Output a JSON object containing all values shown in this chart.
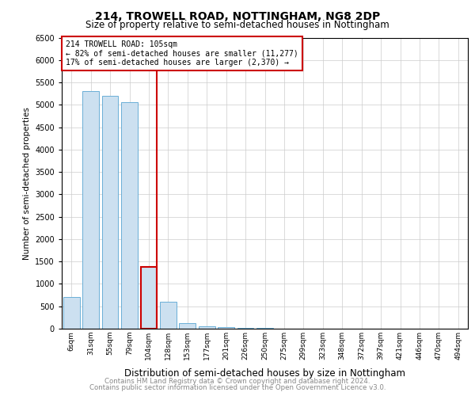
{
  "title1": "214, TROWELL ROAD, NOTTINGHAM, NG8 2DP",
  "title2": "Size of property relative to semi-detached houses in Nottingham",
  "xlabel": "Distribution of semi-detached houses by size in Nottingham",
  "ylabel": "Number of semi-detached properties",
  "annotation_line1": "214 TROWELL ROAD: 105sqm",
  "annotation_line2": "← 82% of semi-detached houses are smaller (11,277)",
  "annotation_line3": "17% of semi-detached houses are larger (2,370) →",
  "categories": [
    "6sqm",
    "31sqm",
    "55sqm",
    "79sqm",
    "104sqm",
    "128sqm",
    "153sqm",
    "177sqm",
    "201sqm",
    "226sqm",
    "250sqm",
    "275sqm",
    "299sqm",
    "323sqm",
    "348sqm",
    "372sqm",
    "397sqm",
    "421sqm",
    "446sqm",
    "470sqm",
    "494sqm"
  ],
  "values": [
    700,
    5300,
    5200,
    5050,
    1380,
    610,
    115,
    55,
    30,
    15,
    10,
    7,
    5,
    3,
    2,
    2,
    2,
    1,
    1,
    1,
    0
  ],
  "bar_color": "#cce0f0",
  "bar_edgecolor": "#6aaed6",
  "highlight_bar_index": 4,
  "highlight_edgecolor": "#cc0000",
  "ylim": [
    0,
    6500
  ],
  "yticks": [
    0,
    500,
    1000,
    1500,
    2000,
    2500,
    3000,
    3500,
    4000,
    4500,
    5000,
    5500,
    6000,
    6500
  ],
  "footer1": "Contains HM Land Registry data © Crown copyright and database right 2024.",
  "footer2": "Contains public sector information licensed under the Open Government Licence v3.0.",
  "annotation_box_edgecolor": "#cc0000"
}
